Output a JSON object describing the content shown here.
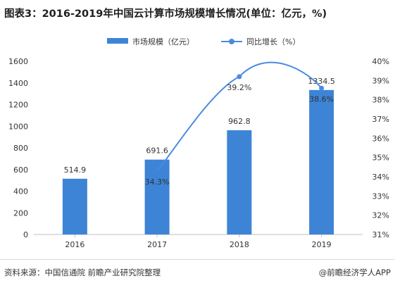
{
  "title": "图表3：2016-2019年中国云计算市场规模增长情况(单位：亿元，%)",
  "legend": {
    "bar_label": "市场规模（亿元）",
    "line_label": "同比增长（%）"
  },
  "source": "资料来源：中国信通院 前瞻产业研究院整理",
  "brand": "@前瞻经济学人APP",
  "colors": {
    "bar": "#3d84d6",
    "line": "#4a8be0",
    "axis": "#bfbfbf",
    "text": "#333333"
  },
  "chart_data": {
    "type": "bar",
    "categories": [
      "2016",
      "2017",
      "2018",
      "2019"
    ],
    "series": [
      {
        "name": "市场规模（亿元）",
        "type": "bar",
        "axis": "left",
        "values": [
          514.9,
          691.6,
          962.8,
          1334.5
        ],
        "labels": [
          "514.9",
          "691.6",
          "962.8",
          "1334.5"
        ]
      },
      {
        "name": "同比增长（%）",
        "type": "line",
        "axis": "right",
        "values": [
          null,
          34.3,
          39.2,
          38.6
        ],
        "labels": [
          "",
          "34.3%",
          "39.2%",
          "38.6%"
        ]
      }
    ],
    "y_left": {
      "min": 0,
      "max": 1600,
      "step": 200,
      "ticks": [
        "0",
        "200",
        "400",
        "600",
        "800",
        "1000",
        "1200",
        "1400",
        "1600"
      ]
    },
    "y_right": {
      "min": 31,
      "max": 40,
      "step": 1,
      "ticks": [
        "31%",
        "32%",
        "33%",
        "34%",
        "35%",
        "36%",
        "37%",
        "38%",
        "39%",
        "40%"
      ]
    },
    "grid": false,
    "legend_position": "top-center"
  }
}
